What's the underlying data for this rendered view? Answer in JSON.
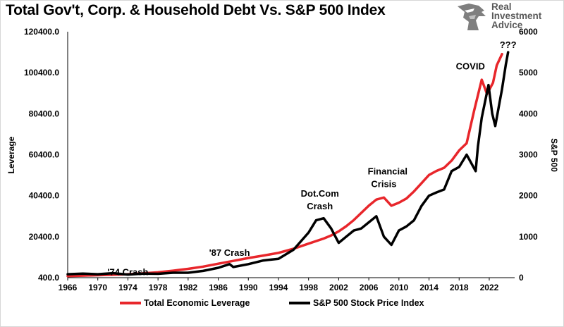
{
  "title": "Total Gov't, Corp. & Household Debt Vs. S&P 500 Index",
  "logo": {
    "line1": "Real",
    "line2": "Investment",
    "line3": "Advice",
    "icon": "eagle-head-icon"
  },
  "chart_data": {
    "type": "line",
    "x_ticks": [
      "1966",
      "1970",
      "1974",
      "1978",
      "1982",
      "1986",
      "1990",
      "1994",
      "1998",
      "2002",
      "2006",
      "2010",
      "2014",
      "2018",
      "2022"
    ],
    "y_left": {
      "label": "Leverage",
      "ticks": [
        "400.0",
        "20400.0",
        "40400.0",
        "60400.0",
        "80400.0",
        "100400.0",
        "120400.0"
      ],
      "range": [
        400,
        120400
      ]
    },
    "y_right": {
      "label": "S&P 500",
      "ticks": [
        "0",
        "1000",
        "2000",
        "3000",
        "4000",
        "5000",
        "6000"
      ],
      "range": [
        0,
        6000
      ]
    },
    "grid": false,
    "legend_position": "bottom",
    "series": [
      {
        "name": "Total Economic Leverage",
        "axis": "left",
        "color": "#e8262b",
        "points": [
          [
            1966,
            1200
          ],
          [
            1968,
            1400
          ],
          [
            1970,
            1600
          ],
          [
            1972,
            1800
          ],
          [
            1974,
            2100
          ],
          [
            1976,
            2500
          ],
          [
            1978,
            3000
          ],
          [
            1980,
            3800
          ],
          [
            1982,
            4700
          ],
          [
            1984,
            5800
          ],
          [
            1986,
            7200
          ],
          [
            1988,
            8600
          ],
          [
            1990,
            10000
          ],
          [
            1992,
            11200
          ],
          [
            1994,
            12500
          ],
          [
            1996,
            14500
          ],
          [
            1998,
            17000
          ],
          [
            2000,
            19500
          ],
          [
            2001,
            21000
          ],
          [
            2002,
            23000
          ],
          [
            2003,
            25500
          ],
          [
            2004,
            28500
          ],
          [
            2005,
            32000
          ],
          [
            2006,
            35500
          ],
          [
            2007,
            38500
          ],
          [
            2008,
            39500
          ],
          [
            2009,
            35500
          ],
          [
            2010,
            37000
          ],
          [
            2011,
            39000
          ],
          [
            2012,
            42500
          ],
          [
            2013,
            46500
          ],
          [
            2014,
            50500
          ],
          [
            2015,
            52500
          ],
          [
            2016,
            54000
          ],
          [
            2017,
            57500
          ],
          [
            2018,
            62500
          ],
          [
            2019,
            66000
          ],
          [
            2020,
            82000
          ],
          [
            2021,
            97000
          ],
          [
            2021.7,
            90000
          ],
          [
            2022.5,
            95500
          ],
          [
            2023,
            104000
          ],
          [
            2023.7,
            109500
          ]
        ]
      },
      {
        "name": "S&P 500 Stock Price Index",
        "axis": "right",
        "color": "#000000",
        "points": [
          [
            1966,
            85
          ],
          [
            1968,
            100
          ],
          [
            1970,
            85
          ],
          [
            1972,
            110
          ],
          [
            1974,
            75
          ],
          [
            1976,
            100
          ],
          [
            1978,
            95
          ],
          [
            1980,
            120
          ],
          [
            1982,
            120
          ],
          [
            1984,
            165
          ],
          [
            1986,
            240
          ],
          [
            1987.5,
            330
          ],
          [
            1988,
            260
          ],
          [
            1990,
            330
          ],
          [
            1992,
            420
          ],
          [
            1994,
            460
          ],
          [
            1996,
            680
          ],
          [
            1998,
            1100
          ],
          [
            1999,
            1400
          ],
          [
            2000,
            1450
          ],
          [
            2001,
            1200
          ],
          [
            2002,
            850
          ],
          [
            2003,
            1000
          ],
          [
            2004,
            1150
          ],
          [
            2005,
            1200
          ],
          [
            2006,
            1350
          ],
          [
            2007,
            1500
          ],
          [
            2008,
            1000
          ],
          [
            2009,
            800
          ],
          [
            2010,
            1150
          ],
          [
            2011,
            1250
          ],
          [
            2012,
            1400
          ],
          [
            2013,
            1750
          ],
          [
            2014,
            2000
          ],
          [
            2015,
            2080
          ],
          [
            2016,
            2150
          ],
          [
            2017,
            2600
          ],
          [
            2018,
            2700
          ],
          [
            2019,
            3000
          ],
          [
            2020.2,
            2600
          ],
          [
            2020.5,
            3200
          ],
          [
            2021,
            3900
          ],
          [
            2021.9,
            4700
          ],
          [
            2022.4,
            4000
          ],
          [
            2022.8,
            3700
          ],
          [
            2023.3,
            4200
          ],
          [
            2023.7,
            4600
          ],
          [
            2024.2,
            5200
          ],
          [
            2024.5,
            5500
          ]
        ]
      }
    ],
    "annotations": [
      {
        "text": "'74 Crash",
        "x": 1974,
        "y": 1600
      },
      {
        "text": "'87 Crash",
        "x": 1987.5,
        "y": 11000
      },
      {
        "text": "Dot.Com",
        "x": 1999.5,
        "y": 40000
      },
      {
        "text": "Crash",
        "x": 1999.5,
        "y": 33800
      },
      {
        "text": "Financial",
        "x": 2008.5,
        "y": 50800
      },
      {
        "text": "Crisis",
        "x": 2008,
        "y": 44500
      },
      {
        "text": "COVID",
        "x": 2019.5,
        "y": 102000
      },
      {
        "text": "???",
        "x": 2024.5,
        "y": 112500
      }
    ]
  }
}
